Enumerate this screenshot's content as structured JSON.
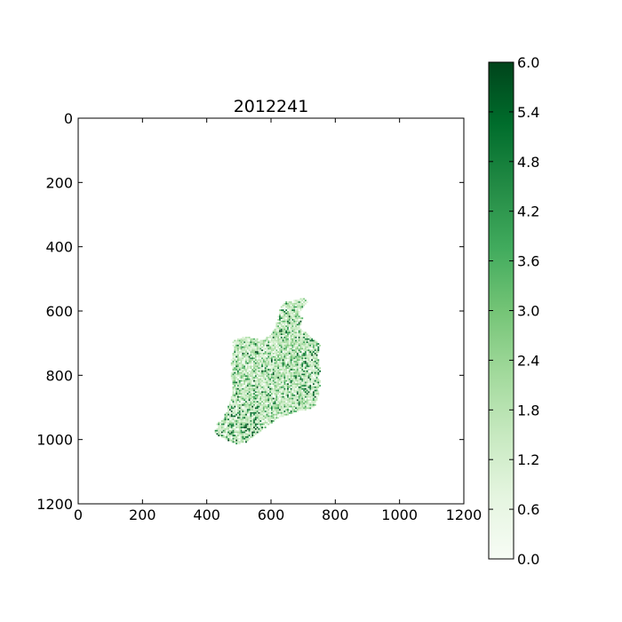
{
  "chart_data": {
    "type": "heatmap",
    "title": "2012241",
    "xlabel": "",
    "ylabel": "",
    "xlim": [
      0,
      1200
    ],
    "ylim": [
      1200,
      0
    ],
    "x_ticks": [
      0,
      200,
      400,
      600,
      800,
      1000,
      1200
    ],
    "y_ticks": [
      0,
      200,
      400,
      600,
      800,
      1000,
      1200
    ],
    "x_tick_labels": [
      "0",
      "200",
      "400",
      "600",
      "800",
      "1000",
      "1200"
    ],
    "y_tick_labels": [
      "0",
      "200",
      "400",
      "600",
      "800",
      "1000",
      "1200"
    ],
    "grid": false,
    "colormap": "Greens",
    "colormap_stops": [
      "#f7fcf5",
      "#e5f5e0",
      "#c7e9c0",
      "#a1d99b",
      "#74c476",
      "#41ab5d",
      "#238b45",
      "#006d2c",
      "#00441b"
    ],
    "colorbar": {
      "range": [
        0.0,
        6.0
      ],
      "ticks": [
        0.0,
        0.6,
        1.2,
        1.8,
        2.4,
        3.0,
        3.6,
        4.2,
        4.8,
        5.4,
        6.0
      ],
      "tick_labels": [
        "0.0",
        "0.6",
        "1.2",
        "1.8",
        "2.4",
        "3.0",
        "3.6",
        "4.2",
        "4.8",
        "5.4",
        "6.0"
      ],
      "placement": "right"
    },
    "region": {
      "description": "Non-zero values only over the land area of Ireland; background is empty (no data).",
      "outline": [
        [
          630,
          590
        ],
        [
          650,
          570
        ],
        [
          680,
          565
        ],
        [
          705,
          560
        ],
        [
          715,
          572
        ],
        [
          700,
          590
        ],
        [
          690,
          605
        ],
        [
          700,
          625
        ],
        [
          690,
          650
        ],
        [
          705,
          665
        ],
        [
          720,
          675
        ],
        [
          735,
          690
        ],
        [
          755,
          705
        ],
        [
          750,
          720
        ],
        [
          745,
          740
        ],
        [
          750,
          760
        ],
        [
          755,
          780
        ],
        [
          750,
          800
        ],
        [
          755,
          825
        ],
        [
          750,
          850
        ],
        [
          745,
          880
        ],
        [
          735,
          900
        ],
        [
          700,
          910
        ],
        [
          675,
          915
        ],
        [
          650,
          925
        ],
        [
          620,
          935
        ],
        [
          600,
          950
        ],
        [
          580,
          965
        ],
        [
          560,
          980
        ],
        [
          540,
          995
        ],
        [
          520,
          1010
        ],
        [
          495,
          1015
        ],
        [
          470,
          1005
        ],
        [
          450,
          995
        ],
        [
          430,
          985
        ],
        [
          425,
          970
        ],
        [
          440,
          960
        ],
        [
          430,
          950
        ],
        [
          450,
          940
        ],
        [
          460,
          915
        ],
        [
          470,
          890
        ],
        [
          480,
          860
        ],
        [
          480,
          830
        ],
        [
          475,
          800
        ],
        [
          480,
          780
        ],
        [
          475,
          760
        ],
        [
          480,
          740
        ],
        [
          485,
          720
        ],
        [
          480,
          700
        ],
        [
          490,
          690
        ],
        [
          520,
          680
        ],
        [
          550,
          685
        ],
        [
          575,
          690
        ],
        [
          600,
          675
        ],
        [
          615,
          650
        ],
        [
          620,
          625
        ],
        [
          625,
          605
        ]
      ],
      "value_range": [
        0.0,
        6.0
      ],
      "typical_value": 1.5,
      "high_value_areas": [
        "east coast near x 700-750, y 680-870",
        "south-west near x 450-560, y 900-1015"
      ]
    }
  }
}
